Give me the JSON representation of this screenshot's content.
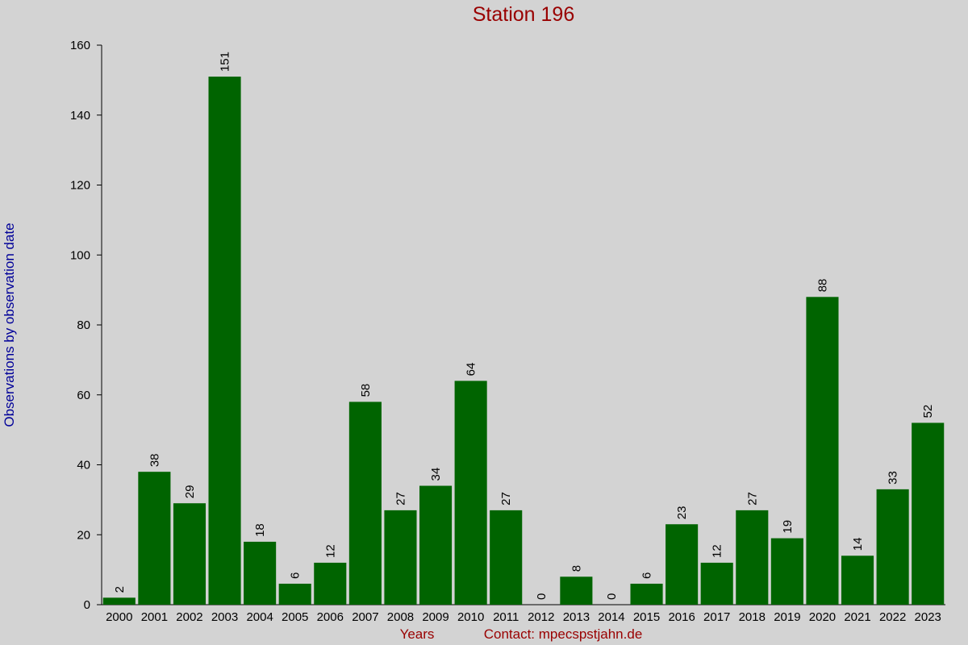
{
  "chart_data": {
    "type": "bar",
    "title": "Station 196",
    "y_label": "Observations by observation date",
    "x_label": "Years",
    "footer": "Contact: mpecspstjahn.de",
    "categories": [
      "2000",
      "2001",
      "2002",
      "2003",
      "2004",
      "2005",
      "2006",
      "2007",
      "2008",
      "2009",
      "2010",
      "2011",
      "2012",
      "2013",
      "2014",
      "2015",
      "2016",
      "2017",
      "2018",
      "2019",
      "2020",
      "2021",
      "2022",
      "2023"
    ],
    "values": [
      2,
      38,
      29,
      151,
      18,
      6,
      12,
      58,
      27,
      34,
      64,
      27,
      0,
      8,
      0,
      6,
      23,
      12,
      27,
      19,
      88,
      14,
      33,
      52
    ],
    "color": "#006400",
    "ylim": [
      0,
      160
    ],
    "yticks": [
      0,
      20,
      40,
      60,
      80,
      100,
      120,
      140,
      160
    ],
    "grid": false
  }
}
